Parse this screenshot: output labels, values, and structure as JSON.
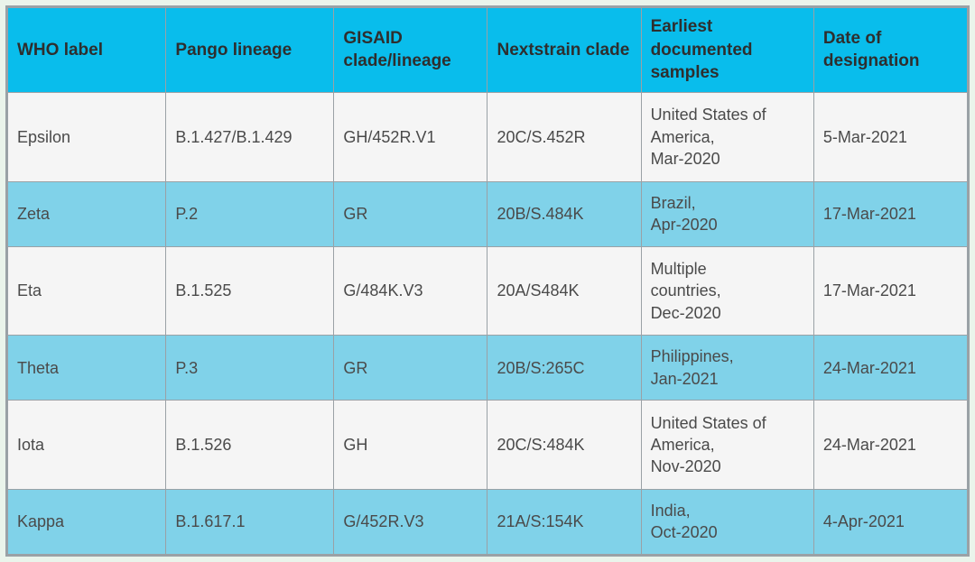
{
  "table": {
    "type": "table",
    "background_color": "#eaf4eb",
    "border_color": "#9aa1a6",
    "header_bg": "#09bdec",
    "stripe_bg": "#80d2e9",
    "plain_bg": "#f5f5f5",
    "text_color": "#4a4a4a",
    "header_text_color": "#2e2e2e",
    "header_fontsize": 19,
    "body_fontsize": 18,
    "column_widths_pct": [
      16.5,
      17.5,
      16.0,
      16.0,
      18.0,
      16.0
    ],
    "columns": [
      "WHO label",
      "Pango lineage",
      "GISAID clade/lineage",
      "Nextstrain clade",
      "Earliest documented samples",
      "Date of designation"
    ],
    "rows": [
      {
        "who": "Epsilon",
        "pango": "B.1.427/B.1.429",
        "gisaid": "GH/452R.V1",
        "nextstrain": "20C/S.452R",
        "samples_l1": "United States of",
        "samples_l2": "America,",
        "samples_l3": "Mar-2020",
        "date": "5-Mar-2021",
        "stripe": false
      },
      {
        "who": "Zeta",
        "pango": "P.2",
        "gisaid": "GR",
        "nextstrain": "20B/S.484K",
        "samples_l1": "Brazil,",
        "samples_l2": "Apr-2020",
        "samples_l3": "",
        "date": "17-Mar-2021",
        "stripe": true
      },
      {
        "who": "Eta",
        "pango": "B.1.525",
        "gisaid": "G/484K.V3",
        "nextstrain": "20A/S484K",
        "samples_l1": "Multiple",
        "samples_l2": "countries,",
        "samples_l3": "Dec-2020",
        "date": "17-Mar-2021",
        "stripe": false
      },
      {
        "who": "Theta",
        "pango": "P.3",
        "gisaid": "GR",
        "nextstrain": "20B/S:265C",
        "samples_l1": "Philippines,",
        "samples_l2": "Jan-2021",
        "samples_l3": "",
        "date": "24-Mar-2021",
        "stripe": true
      },
      {
        "who": "Iota",
        "pango": "B.1.526",
        "gisaid": "GH",
        "nextstrain": "20C/S:484K",
        "samples_l1": "United States of",
        "samples_l2": "America,",
        "samples_l3": "Nov-2020",
        "date": "24-Mar-2021",
        "stripe": false
      },
      {
        "who": "Kappa",
        "pango": "B.1.617.1",
        "gisaid": " G/452R.V3",
        "nextstrain": "21A/S:154K",
        "samples_l1": "India,",
        "samples_l2": "Oct-2020",
        "samples_l3": "",
        "date": "4-Apr-2021",
        "stripe": true
      }
    ]
  }
}
